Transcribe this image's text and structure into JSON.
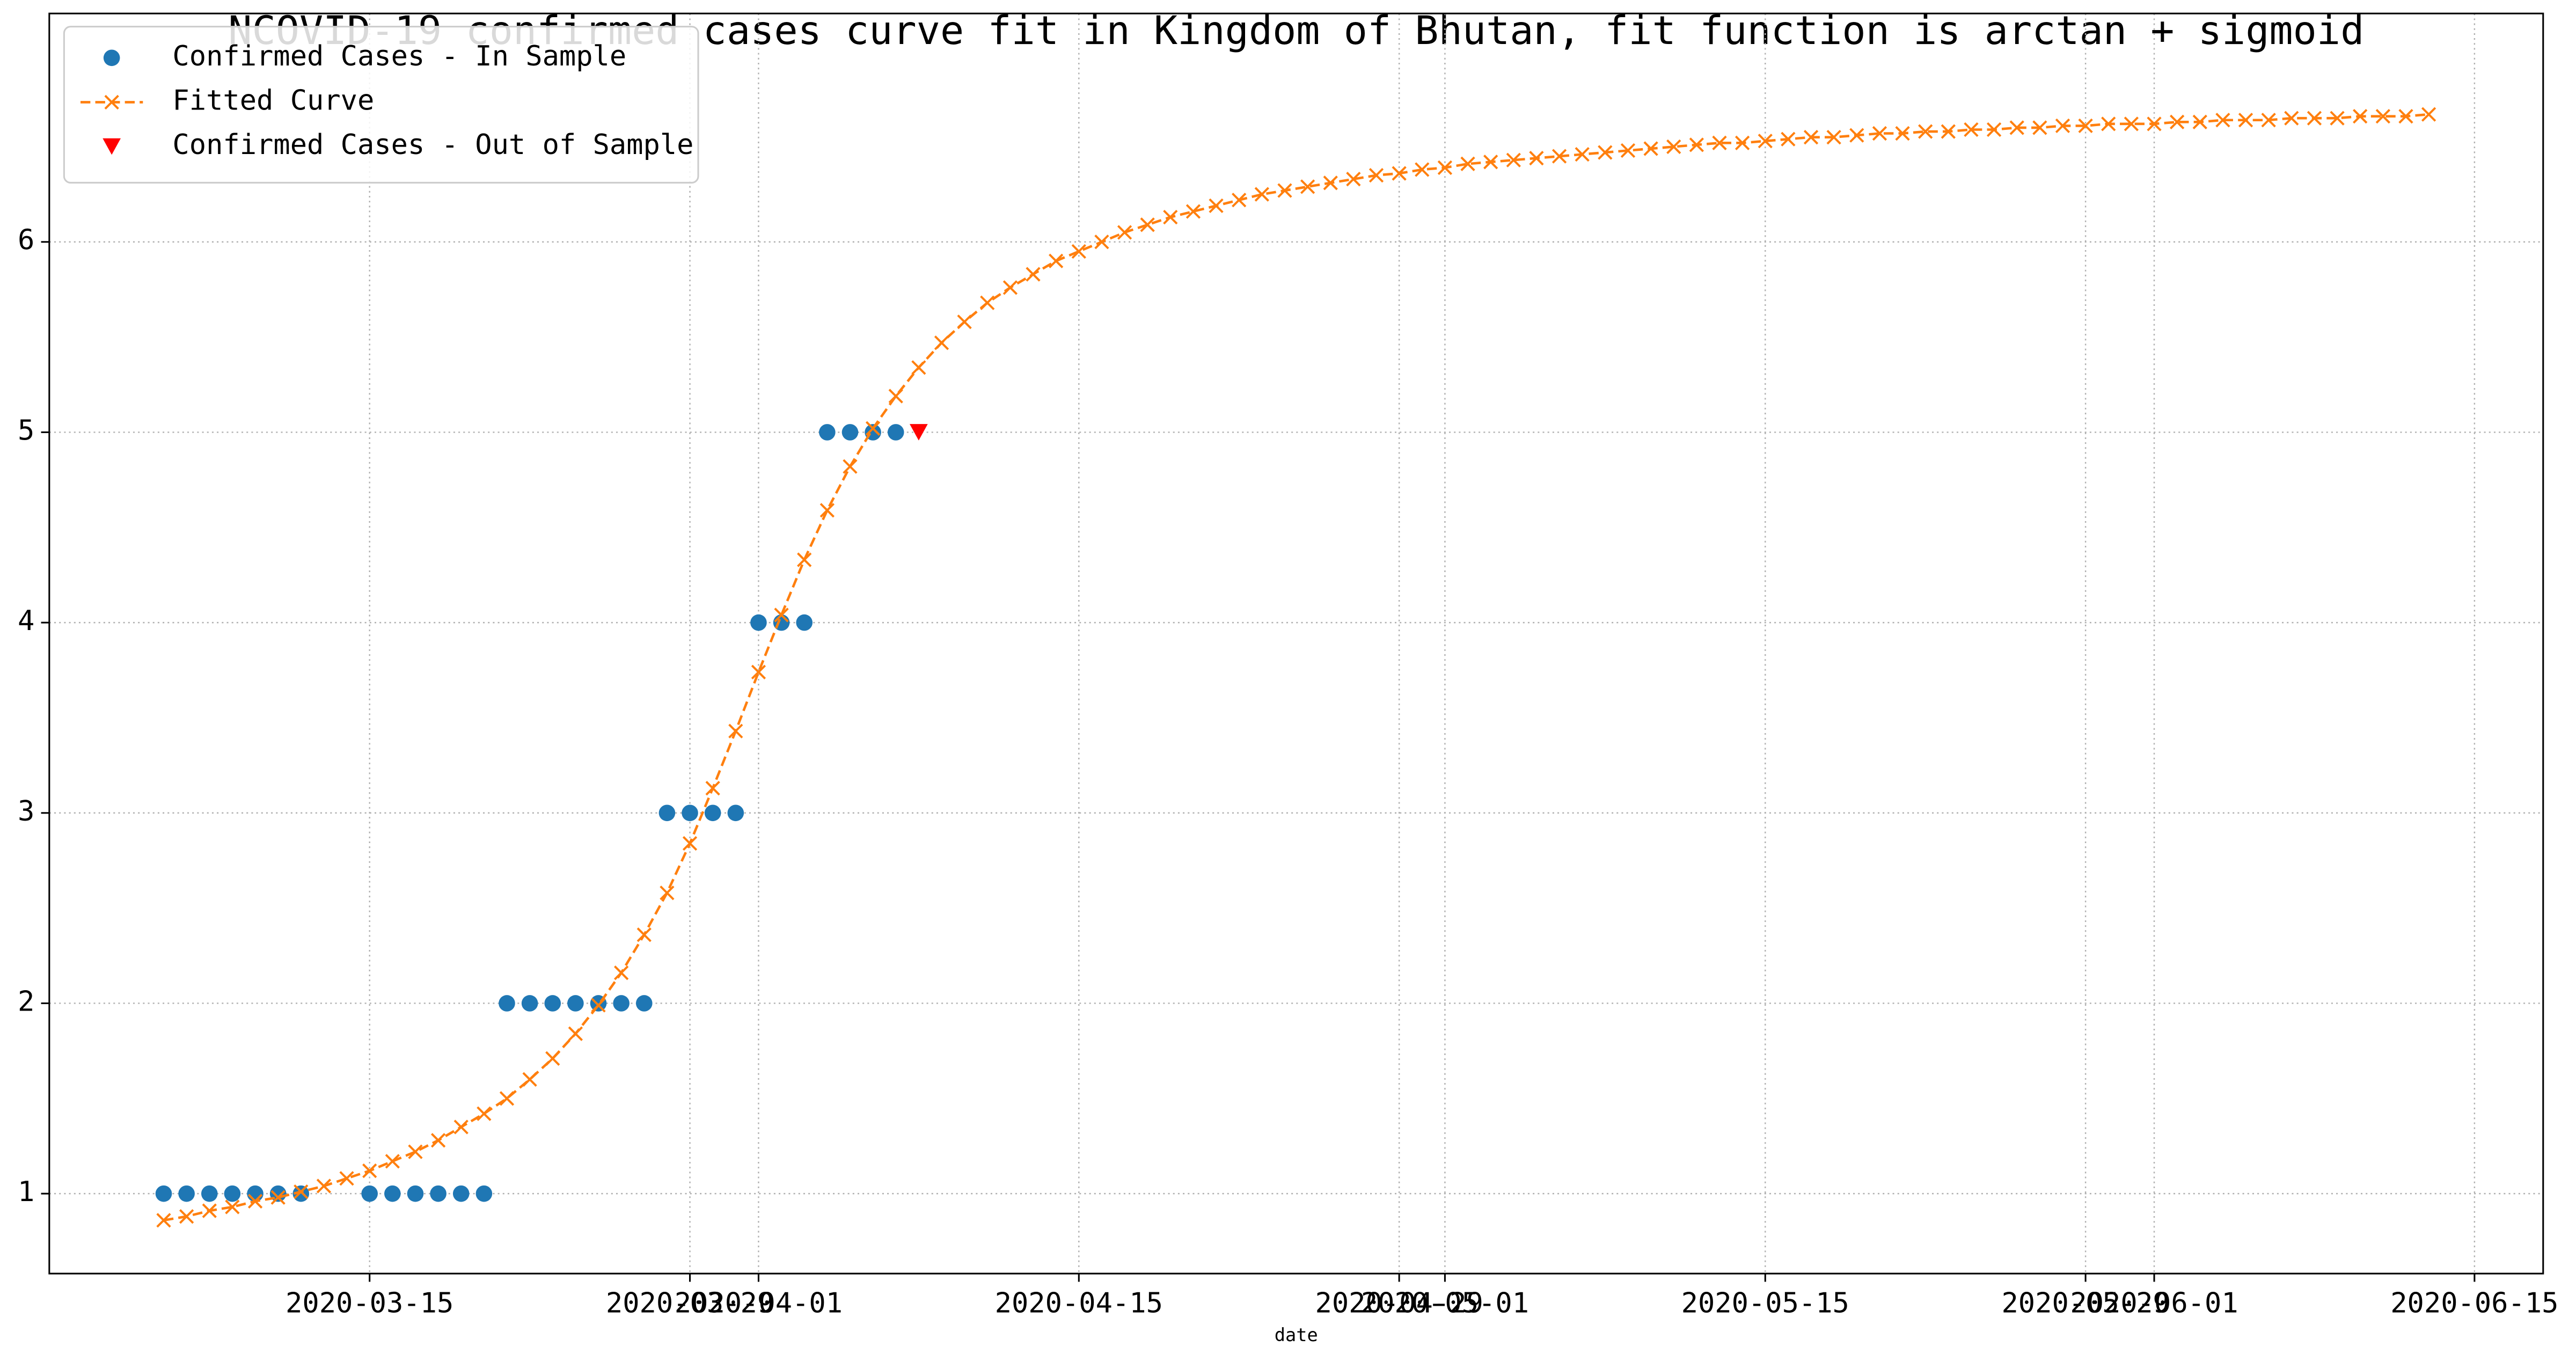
{
  "chart_data": {
    "type": "line",
    "title": "NCOVID-19 confirmed cases curve fit in Kingdom of Bhutan, fit function is arctan + sigmoid",
    "xlabel": "date",
    "xlim": [
      "2020-03-01",
      "2020-06-18"
    ],
    "xticks": [
      "2020-03-15",
      "2020-03-29",
      "2020-04-01",
      "2020-04-15",
      "2020-04-29",
      "2020-05-01",
      "2020-05-15",
      "2020-05-29",
      "2020-06-01",
      "2020-06-15"
    ],
    "ylim": [
      0.58,
      7.2
    ],
    "yticks": [
      1,
      2,
      3,
      4,
      5,
      6
    ],
    "grid": true,
    "legend": "upper left",
    "series": [
      {
        "name": "Confirmed Cases - In Sample",
        "color": "#1f77b4",
        "marker": "o",
        "x": [
          "2020-03-06",
          "2020-03-07",
          "2020-03-08",
          "2020-03-09",
          "2020-03-10",
          "2020-03-11",
          "2020-03-12",
          "2020-03-15",
          "2020-03-16",
          "2020-03-17",
          "2020-03-18",
          "2020-03-19",
          "2020-03-20",
          "2020-03-21",
          "2020-03-22",
          "2020-03-23",
          "2020-03-24",
          "2020-03-25",
          "2020-03-26",
          "2020-03-27",
          "2020-03-28",
          "2020-03-29",
          "2020-03-30",
          "2020-03-31",
          "2020-04-01",
          "2020-04-02",
          "2020-04-03",
          "2020-04-04",
          "2020-04-05",
          "2020-04-06",
          "2020-04-07"
        ],
        "values": [
          1,
          1,
          1,
          1,
          1,
          1,
          1,
          1,
          1,
          1,
          1,
          1,
          1,
          2,
          2,
          2,
          2,
          2,
          2,
          2,
          3,
          3,
          3,
          3,
          4,
          4,
          4,
          5,
          5,
          5,
          5
        ]
      },
      {
        "name": "Fitted Curve",
        "color": "#ff7f0e",
        "marker": "x",
        "linestyle": "--",
        "x": [
          "2020-03-06",
          "2020-03-07",
          "2020-03-08",
          "2020-03-09",
          "2020-03-10",
          "2020-03-11",
          "2020-03-12",
          "2020-03-13",
          "2020-03-14",
          "2020-03-15",
          "2020-03-16",
          "2020-03-17",
          "2020-03-18",
          "2020-03-19",
          "2020-03-20",
          "2020-03-21",
          "2020-03-22",
          "2020-03-23",
          "2020-03-24",
          "2020-03-25",
          "2020-03-26",
          "2020-03-27",
          "2020-03-28",
          "2020-03-29",
          "2020-03-30",
          "2020-03-31",
          "2020-04-01",
          "2020-04-02",
          "2020-04-03",
          "2020-04-04",
          "2020-04-05",
          "2020-04-06",
          "2020-04-07",
          "2020-04-08",
          "2020-04-09",
          "2020-04-10",
          "2020-04-11",
          "2020-04-12",
          "2020-04-13",
          "2020-04-14",
          "2020-04-15",
          "2020-04-16",
          "2020-04-17",
          "2020-04-18",
          "2020-04-19",
          "2020-04-20",
          "2020-04-21",
          "2020-04-22",
          "2020-04-23",
          "2020-04-24",
          "2020-04-25",
          "2020-04-26",
          "2020-04-27",
          "2020-04-28",
          "2020-04-29",
          "2020-04-30",
          "2020-05-01",
          "2020-05-02",
          "2020-05-03",
          "2020-05-04",
          "2020-05-05",
          "2020-05-06",
          "2020-05-07",
          "2020-05-08",
          "2020-05-09",
          "2020-05-10",
          "2020-05-11",
          "2020-05-12",
          "2020-05-13",
          "2020-05-14",
          "2020-05-15",
          "2020-05-16",
          "2020-05-17",
          "2020-05-18",
          "2020-05-19",
          "2020-05-20",
          "2020-05-21",
          "2020-05-22",
          "2020-05-23",
          "2020-05-24",
          "2020-05-25",
          "2020-05-26",
          "2020-05-27",
          "2020-05-28",
          "2020-05-29",
          "2020-05-30",
          "2020-05-31",
          "2020-06-01",
          "2020-06-02",
          "2020-06-03",
          "2020-06-04",
          "2020-06-05",
          "2020-06-06",
          "2020-06-07",
          "2020-06-08",
          "2020-06-09",
          "2020-06-10",
          "2020-06-11",
          "2020-06-12",
          "2020-06-13"
        ],
        "values": [
          0.86,
          0.88,
          0.91,
          0.93,
          0.96,
          0.98,
          1.01,
          1.04,
          1.08,
          1.12,
          1.17,
          1.22,
          1.28,
          1.35,
          1.42,
          1.5,
          1.6,
          1.71,
          1.84,
          1.99,
          2.16,
          2.36,
          2.58,
          2.84,
          3.13,
          3.43,
          3.74,
          4.04,
          4.33,
          4.59,
          4.82,
          5.02,
          5.19,
          5.34,
          5.47,
          5.58,
          5.68,
          5.76,
          5.83,
          5.9,
          5.95,
          6.0,
          6.05,
          6.09,
          6.13,
          6.16,
          6.19,
          6.22,
          6.25,
          6.27,
          6.29,
          6.31,
          6.33,
          6.35,
          6.36,
          6.38,
          6.39,
          6.41,
          6.42,
          6.43,
          6.44,
          6.45,
          6.46,
          6.47,
          6.48,
          6.49,
          6.5,
          6.51,
          6.52,
          6.52,
          6.53,
          6.54,
          6.55,
          6.55,
          6.56,
          6.57,
          6.57,
          6.58,
          6.58,
          6.59,
          6.59,
          6.6,
          6.6,
          6.61,
          6.61,
          6.62,
          6.62,
          6.62,
          6.63,
          6.63,
          6.64,
          6.64,
          6.64,
          6.65,
          6.65,
          6.65,
          6.66,
          6.66,
          6.66,
          6.67
        ]
      },
      {
        "name": "Confirmed Cases - Out of Sample",
        "color": "#ff0000",
        "marker": "v",
        "x": [
          "2020-04-08"
        ],
        "values": [
          5
        ]
      }
    ]
  }
}
